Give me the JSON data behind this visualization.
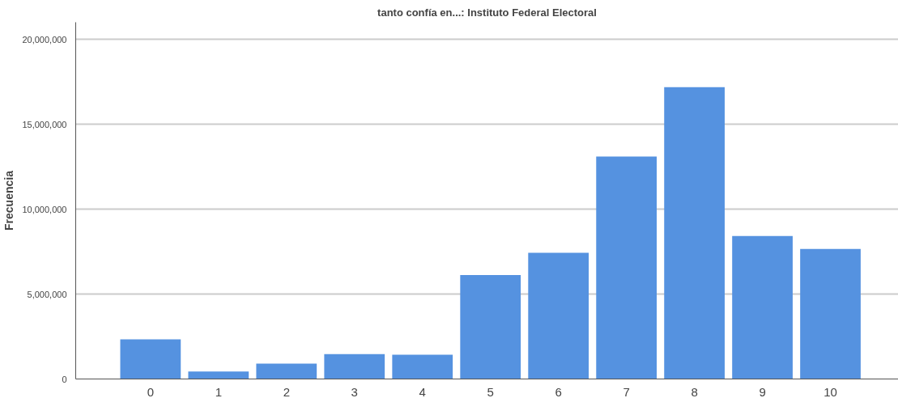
{
  "chart_data": {
    "type": "bar",
    "title": "tanto confía en...: Instituto Federal Electoral",
    "ylabel": "Frecuencia",
    "categories": [
      "0",
      "1",
      "2",
      "3",
      "4",
      "5",
      "6",
      "7",
      "8",
      "9",
      "10"
    ],
    "values": [
      2330000,
      440000,
      900000,
      1470000,
      1430000,
      6120000,
      7430000,
      13090000,
      17180000,
      8420000,
      7660000
    ],
    "color": "#5592e0",
    "ylim": [
      0,
      21000000
    ],
    "yticks": [
      {
        "value": 0,
        "label": "0"
      },
      {
        "value": 5000000,
        "label": "5,000,000"
      },
      {
        "value": 10000000,
        "label": "10,000,000"
      },
      {
        "value": 15000000,
        "label": "15,000,000"
      },
      {
        "value": 20000000,
        "label": "20,000,000"
      }
    ],
    "grid": "y"
  }
}
